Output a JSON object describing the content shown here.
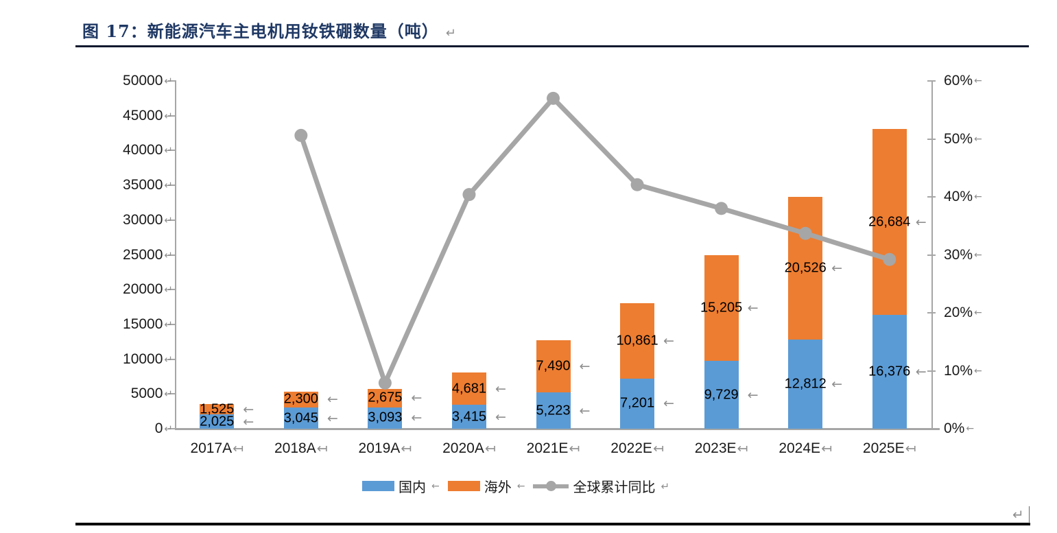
{
  "title": {
    "text": "图 17：新能源汽车主电机用钕铁硼数量（吨）",
    "mark": "↵"
  },
  "marks": {
    "return": "↵",
    "arrow": "←",
    "axis_tab": "↤"
  },
  "colors": {
    "domestic_blue": "#5B9BD5",
    "overseas_orange": "#ED7D31",
    "line_gray": "#A6A6A6",
    "axis_gray": "#A6A6A6",
    "title_navy": "#1F3864",
    "mark_gray": "#8f8f8f"
  },
  "chart_data": {
    "type": "bar+line",
    "title": "新能源汽车主电机用钕铁硼数量（吨）",
    "categories": [
      "2017A",
      "2018A",
      "2019A",
      "2020A",
      "2021E",
      "2022E",
      "2023E",
      "2024E",
      "2025E"
    ],
    "bar_series": [
      {
        "name": "国内",
        "color": "#5B9BD5",
        "values": [
          2025,
          3045,
          3093,
          3415,
          5223,
          7201,
          9729,
          12812,
          16376
        ]
      },
      {
        "name": "海外",
        "color": "#ED7D31",
        "values": [
          1525,
          2300,
          2675,
          4681,
          7490,
          10861,
          15205,
          20526,
          26684
        ]
      }
    ],
    "line_series": {
      "name": "全球累计同比",
      "color": "#A6A6A6",
      "axis": "right",
      "values_pct": [
        null,
        50.6,
        7.9,
        40.4,
        57.0,
        42.1,
        38.0,
        33.7,
        29.2
      ]
    },
    "left_axis": {
      "min": 0,
      "max": 50000,
      "step": 5000
    },
    "right_axis": {
      "min": 0,
      "max": 60,
      "step": 10,
      "suffix": "%"
    },
    "stacked": true,
    "data_labels": true,
    "grid": false,
    "legend_position": "bottom"
  }
}
